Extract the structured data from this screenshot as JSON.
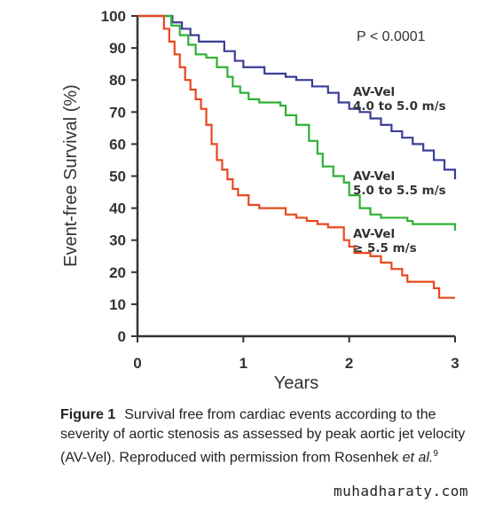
{
  "chart_data": {
    "type": "line",
    "ylabel": "Event-free Survival (%)",
    "xlabel": "Years",
    "xlim": [
      0,
      3
    ],
    "ylim": [
      0,
      100
    ],
    "x_ticks": [
      "0",
      "1",
      "2",
      "3"
    ],
    "y_ticks": [
      "0",
      "10",
      "20",
      "30",
      "40",
      "50",
      "60",
      "70",
      "80",
      "90",
      "100"
    ],
    "annotation": "P < 0.0001",
    "series": [
      {
        "name": "AV-Vel 4.0 to 5.0 m/s",
        "label_lines": [
          "AV-Vel",
          "4.0 to 5.0 m/s"
        ],
        "color": "#3a3d96",
        "points": [
          [
            0,
            100
          ],
          [
            0.28,
            100
          ],
          [
            0.33,
            98
          ],
          [
            0.42,
            96
          ],
          [
            0.5,
            94
          ],
          [
            0.58,
            92
          ],
          [
            0.75,
            92
          ],
          [
            0.82,
            89
          ],
          [
            0.92,
            86
          ],
          [
            1.0,
            84
          ],
          [
            1.2,
            82
          ],
          [
            1.4,
            81
          ],
          [
            1.5,
            80
          ],
          [
            1.65,
            78
          ],
          [
            1.8,
            76
          ],
          [
            1.9,
            73
          ],
          [
            2.0,
            71
          ],
          [
            2.1,
            70
          ],
          [
            2.2,
            68
          ],
          [
            2.3,
            66
          ],
          [
            2.4,
            64
          ],
          [
            2.5,
            62
          ],
          [
            2.6,
            60
          ],
          [
            2.7,
            58
          ],
          [
            2.8,
            55
          ],
          [
            2.9,
            52
          ],
          [
            3.0,
            49
          ]
        ]
      },
      {
        "name": "AV-Vel 5.0 to 5.5 m/s",
        "label_lines": [
          "AV-Vel",
          "5.0 to 5.5 m/s"
        ],
        "color": "#2db034",
        "points": [
          [
            0,
            100
          ],
          [
            0.28,
            100
          ],
          [
            0.32,
            97
          ],
          [
            0.4,
            94
          ],
          [
            0.48,
            91
          ],
          [
            0.55,
            88
          ],
          [
            0.65,
            87
          ],
          [
            0.75,
            84
          ],
          [
            0.85,
            81
          ],
          [
            0.9,
            78
          ],
          [
            0.97,
            76
          ],
          [
            1.05,
            74
          ],
          [
            1.15,
            73
          ],
          [
            1.35,
            72
          ],
          [
            1.4,
            69
          ],
          [
            1.5,
            66
          ],
          [
            1.62,
            61
          ],
          [
            1.7,
            57
          ],
          [
            1.75,
            53
          ],
          [
            1.85,
            50
          ],
          [
            1.95,
            48
          ],
          [
            2.0,
            44
          ],
          [
            2.1,
            40
          ],
          [
            2.2,
            38
          ],
          [
            2.3,
            37
          ],
          [
            2.55,
            36
          ],
          [
            2.6,
            35
          ],
          [
            2.95,
            35
          ],
          [
            3.0,
            33
          ]
        ]
      },
      {
        "name": "AV-Vel ≥ 5.5 m/s",
        "label_lines": [
          "AV-Vel",
          "≥ 5.5 m/s"
        ],
        "color": "#e8471f",
        "points": [
          [
            0,
            100
          ],
          [
            0.2,
            100
          ],
          [
            0.25,
            96
          ],
          [
            0.3,
            92
          ],
          [
            0.35,
            88
          ],
          [
            0.4,
            84
          ],
          [
            0.45,
            80
          ],
          [
            0.5,
            77
          ],
          [
            0.55,
            74
          ],
          [
            0.6,
            71
          ],
          [
            0.65,
            66
          ],
          [
            0.7,
            60
          ],
          [
            0.75,
            55
          ],
          [
            0.8,
            52
          ],
          [
            0.85,
            49
          ],
          [
            0.9,
            46
          ],
          [
            0.95,
            44
          ],
          [
            1.05,
            41
          ],
          [
            1.15,
            40
          ],
          [
            1.4,
            38
          ],
          [
            1.5,
            37
          ],
          [
            1.6,
            36
          ],
          [
            1.7,
            35
          ],
          [
            1.8,
            34
          ],
          [
            1.95,
            30
          ],
          [
            2.0,
            28
          ],
          [
            2.05,
            26
          ],
          [
            2.2,
            25
          ],
          [
            2.3,
            23
          ],
          [
            2.4,
            21
          ],
          [
            2.5,
            19
          ],
          [
            2.55,
            17
          ],
          [
            2.75,
            17
          ],
          [
            2.8,
            15
          ],
          [
            2.85,
            12
          ],
          [
            3.0,
            12
          ]
        ]
      }
    ]
  },
  "caption": {
    "label": "Figure 1",
    "text": "Survival free from cardiac events according to the severity of aortic stenosis as assessed by peak aortic jet velocity (AV-Vel). Reproduced with permission from Rosenhek ",
    "italic": "et al.",
    "ref": "9"
  },
  "watermark": "muhadharaty.com"
}
